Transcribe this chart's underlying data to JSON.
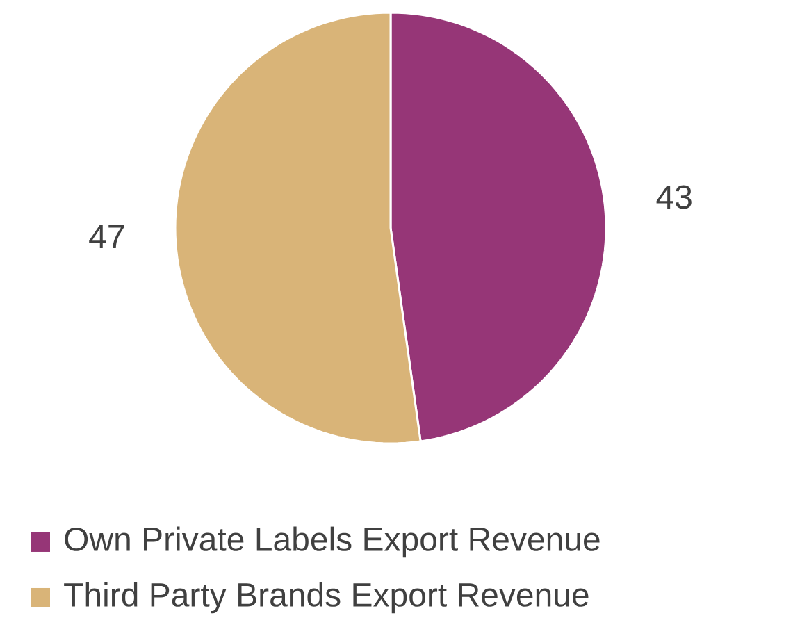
{
  "chart_data": {
    "type": "pie",
    "categories": [
      "Own Private Labels Export Revenue",
      "Third Party Brands Export Revenue"
    ],
    "values": [
      43,
      47
    ],
    "colors": [
      "#963677",
      "#d9b478"
    ],
    "data_labels": true,
    "legend": "bottom"
  }
}
